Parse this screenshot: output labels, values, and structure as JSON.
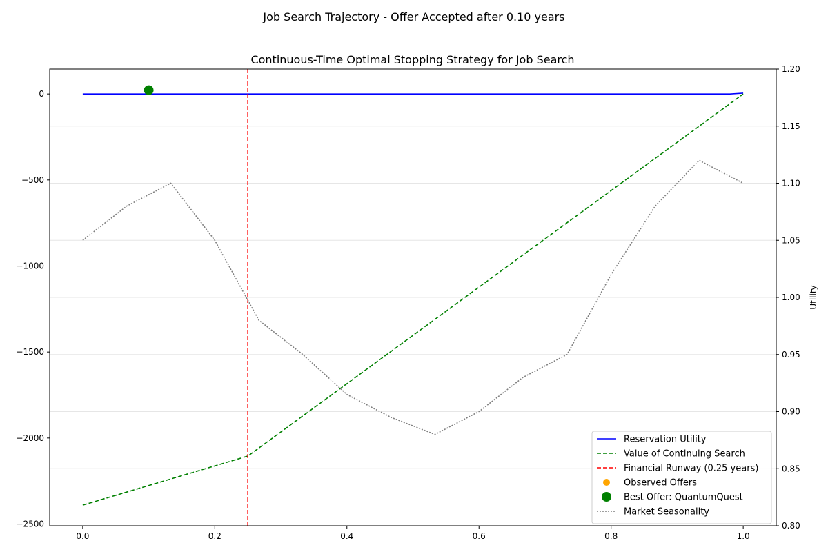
{
  "suptitle": "Job Search Trajectory - Offer Accepted after 0.10 years",
  "chart_data": {
    "type": "line",
    "title": "Continuous-Time Optimal Stopping Strategy for Job Search",
    "xlabel": "",
    "ylabel_left": "",
    "ylabel_right": "Utility",
    "xlim": [
      -0.05,
      1.05
    ],
    "ylim_left": [
      -2510,
      145
    ],
    "ylim_right": [
      0.8,
      1.2
    ],
    "x_ticks": [
      "0.0",
      "0.2",
      "0.4",
      "0.6",
      "0.8",
      "1.0"
    ],
    "x_tick_values": [
      0.0,
      0.2,
      0.4,
      0.6,
      0.8,
      1.0
    ],
    "y_left_ticks": [
      "0",
      "−500",
      "−1000",
      "−1500",
      "−2000",
      "−2500"
    ],
    "y_left_tick_values": [
      0,
      -500,
      -1000,
      -1500,
      -2000,
      -2500
    ],
    "y_right_ticks": [
      "1.20",
      "1.15",
      "1.10",
      "1.05",
      "1.00",
      "0.95",
      "0.90",
      "0.85",
      "0.80"
    ],
    "y_right_tick_values": [
      1.2,
      1.15,
      1.1,
      1.05,
      1.0,
      0.95,
      0.9,
      0.85,
      0.8
    ],
    "grid": "horizontal lines on right axis",
    "legend_position": "lower-right",
    "series": [
      {
        "name": "Reservation Utility",
        "axis": "left",
        "style": "solid",
        "color": "#0000ff",
        "x": [
          0.0,
          0.1,
          0.2,
          0.3,
          0.4,
          0.5,
          0.6,
          0.7,
          0.8,
          0.9,
          0.98,
          1.0
        ],
        "y": [
          0,
          0,
          0,
          0,
          0,
          0,
          0,
          0,
          0,
          0,
          0,
          5
        ]
      },
      {
        "name": "Value of Continuing Search",
        "axis": "left",
        "style": "dashed",
        "color": "#008000",
        "x": [
          0.0,
          0.25,
          1.0
        ],
        "y": [
          -2390,
          -2105,
          0
        ]
      },
      {
        "name": "Financial Runway (0.25 years)",
        "axis": "left",
        "style": "vline-dashed",
        "color": "#ff0000",
        "x_value": 0.25
      },
      {
        "name": "Observed Offers",
        "axis": "left",
        "style": "scatter",
        "color": "#ffa500",
        "points": []
      },
      {
        "name": "Best Offer: QuantumQuest",
        "axis": "left",
        "style": "scatter-large",
        "color": "#008000",
        "points": [
          {
            "x": 0.1,
            "y": 22
          }
        ]
      },
      {
        "name": "Market Seasonality",
        "axis": "right",
        "style": "dotted",
        "color": "#808080",
        "x": [
          0.0,
          0.0667,
          0.1333,
          0.2,
          0.2667,
          0.3333,
          0.4,
          0.4667,
          0.5333,
          0.6,
          0.6667,
          0.7333,
          0.8,
          0.8667,
          0.9333,
          1.0
        ],
        "y": [
          1.05,
          1.08,
          1.1,
          1.05,
          0.98,
          0.95,
          0.915,
          0.895,
          0.88,
          0.9,
          0.93,
          0.95,
          1.02,
          1.08,
          1.12,
          1.1
        ]
      }
    ]
  }
}
